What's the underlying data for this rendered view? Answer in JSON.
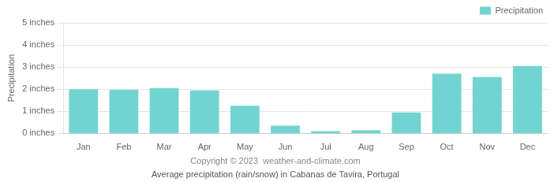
{
  "chart_data": {
    "type": "bar",
    "title": "Average precipitation (rain/snow) in Cabanas de Tavira, Portugal",
    "subtitle": "Copyright © 2023  weather-and-climate.com",
    "categories": [
      "Jan",
      "Feb",
      "Mar",
      "Apr",
      "May",
      "Jun",
      "Jul",
      "Aug",
      "Sep",
      "Oct",
      "Nov",
      "Dec"
    ],
    "series": [
      {
        "name": "Precipitation",
        "color": "#72d4d0",
        "values": [
          2.0,
          1.97,
          2.05,
          1.95,
          1.25,
          0.35,
          0.1,
          0.15,
          0.95,
          2.7,
          2.55,
          3.05
        ]
      }
    ],
    "ylabel": "Precipitation",
    "ylim": [
      0,
      5
    ],
    "yticks": [
      {
        "value": 0,
        "label": "0 inches"
      },
      {
        "value": 1,
        "label": "1 inches"
      },
      {
        "value": 2,
        "label": "2 inches"
      },
      {
        "value": 3,
        "label": "3 inches"
      },
      {
        "value": 4,
        "label": "4 inches"
      },
      {
        "value": 5,
        "label": "5 inches"
      }
    ],
    "grid": true,
    "legend": "upper right"
  }
}
